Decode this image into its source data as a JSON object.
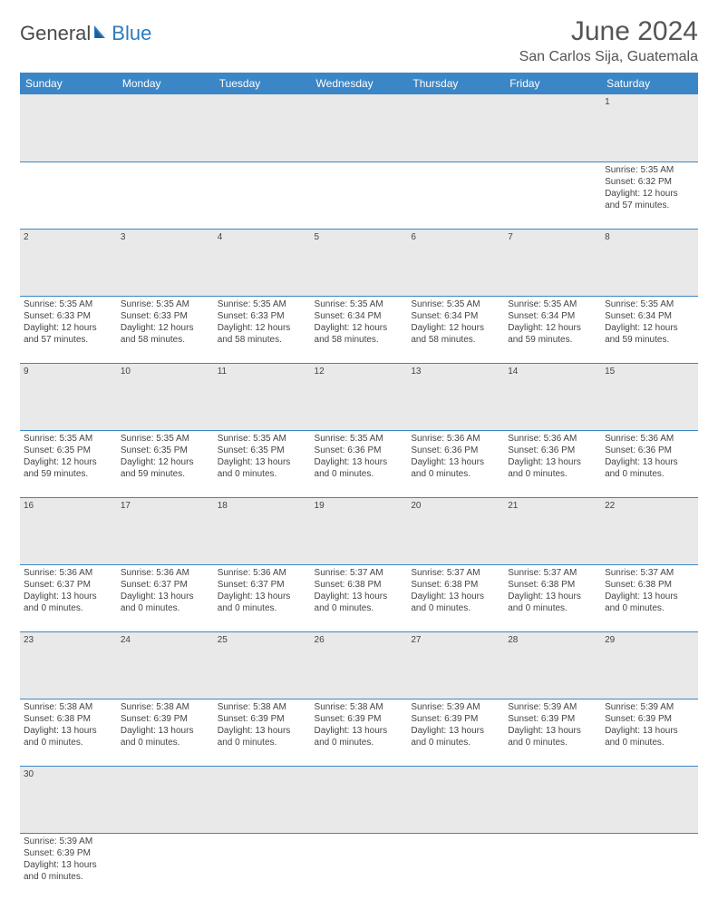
{
  "brand": {
    "general": "General",
    "blue": "Blue"
  },
  "title": "June 2024",
  "location": "San Carlos Sija, Guatemala",
  "colors": {
    "header_bg": "#3b86c6",
    "header_text": "#ffffff",
    "daynum_bg": "#e9e9e9",
    "cell_border": "#3b86c6",
    "text": "#444444",
    "title_text": "#555555"
  },
  "weekdays": [
    "Sunday",
    "Monday",
    "Tuesday",
    "Wednesday",
    "Thursday",
    "Friday",
    "Saturday"
  ],
  "weeks": [
    {
      "nums": [
        "",
        "",
        "",
        "",
        "",
        "",
        "1"
      ],
      "cells": [
        null,
        null,
        null,
        null,
        null,
        null,
        {
          "sunrise": "Sunrise: 5:35 AM",
          "sunset": "Sunset: 6:32 PM",
          "day1": "Daylight: 12 hours",
          "day2": "and 57 minutes."
        }
      ]
    },
    {
      "nums": [
        "2",
        "3",
        "4",
        "5",
        "6",
        "7",
        "8"
      ],
      "cells": [
        {
          "sunrise": "Sunrise: 5:35 AM",
          "sunset": "Sunset: 6:33 PM",
          "day1": "Daylight: 12 hours",
          "day2": "and 57 minutes."
        },
        {
          "sunrise": "Sunrise: 5:35 AM",
          "sunset": "Sunset: 6:33 PM",
          "day1": "Daylight: 12 hours",
          "day2": "and 58 minutes."
        },
        {
          "sunrise": "Sunrise: 5:35 AM",
          "sunset": "Sunset: 6:33 PM",
          "day1": "Daylight: 12 hours",
          "day2": "and 58 minutes."
        },
        {
          "sunrise": "Sunrise: 5:35 AM",
          "sunset": "Sunset: 6:34 PM",
          "day1": "Daylight: 12 hours",
          "day2": "and 58 minutes."
        },
        {
          "sunrise": "Sunrise: 5:35 AM",
          "sunset": "Sunset: 6:34 PM",
          "day1": "Daylight: 12 hours",
          "day2": "and 58 minutes."
        },
        {
          "sunrise": "Sunrise: 5:35 AM",
          "sunset": "Sunset: 6:34 PM",
          "day1": "Daylight: 12 hours",
          "day2": "and 59 minutes."
        },
        {
          "sunrise": "Sunrise: 5:35 AM",
          "sunset": "Sunset: 6:34 PM",
          "day1": "Daylight: 12 hours",
          "day2": "and 59 minutes."
        }
      ]
    },
    {
      "nums": [
        "9",
        "10",
        "11",
        "12",
        "13",
        "14",
        "15"
      ],
      "cells": [
        {
          "sunrise": "Sunrise: 5:35 AM",
          "sunset": "Sunset: 6:35 PM",
          "day1": "Daylight: 12 hours",
          "day2": "and 59 minutes."
        },
        {
          "sunrise": "Sunrise: 5:35 AM",
          "sunset": "Sunset: 6:35 PM",
          "day1": "Daylight: 12 hours",
          "day2": "and 59 minutes."
        },
        {
          "sunrise": "Sunrise: 5:35 AM",
          "sunset": "Sunset: 6:35 PM",
          "day1": "Daylight: 13 hours",
          "day2": "and 0 minutes."
        },
        {
          "sunrise": "Sunrise: 5:35 AM",
          "sunset": "Sunset: 6:36 PM",
          "day1": "Daylight: 13 hours",
          "day2": "and 0 minutes."
        },
        {
          "sunrise": "Sunrise: 5:36 AM",
          "sunset": "Sunset: 6:36 PM",
          "day1": "Daylight: 13 hours",
          "day2": "and 0 minutes."
        },
        {
          "sunrise": "Sunrise: 5:36 AM",
          "sunset": "Sunset: 6:36 PM",
          "day1": "Daylight: 13 hours",
          "day2": "and 0 minutes."
        },
        {
          "sunrise": "Sunrise: 5:36 AM",
          "sunset": "Sunset: 6:36 PM",
          "day1": "Daylight: 13 hours",
          "day2": "and 0 minutes."
        }
      ]
    },
    {
      "nums": [
        "16",
        "17",
        "18",
        "19",
        "20",
        "21",
        "22"
      ],
      "cells": [
        {
          "sunrise": "Sunrise: 5:36 AM",
          "sunset": "Sunset: 6:37 PM",
          "day1": "Daylight: 13 hours",
          "day2": "and 0 minutes."
        },
        {
          "sunrise": "Sunrise: 5:36 AM",
          "sunset": "Sunset: 6:37 PM",
          "day1": "Daylight: 13 hours",
          "day2": "and 0 minutes."
        },
        {
          "sunrise": "Sunrise: 5:36 AM",
          "sunset": "Sunset: 6:37 PM",
          "day1": "Daylight: 13 hours",
          "day2": "and 0 minutes."
        },
        {
          "sunrise": "Sunrise: 5:37 AM",
          "sunset": "Sunset: 6:38 PM",
          "day1": "Daylight: 13 hours",
          "day2": "and 0 minutes."
        },
        {
          "sunrise": "Sunrise: 5:37 AM",
          "sunset": "Sunset: 6:38 PM",
          "day1": "Daylight: 13 hours",
          "day2": "and 0 minutes."
        },
        {
          "sunrise": "Sunrise: 5:37 AM",
          "sunset": "Sunset: 6:38 PM",
          "day1": "Daylight: 13 hours",
          "day2": "and 0 minutes."
        },
        {
          "sunrise": "Sunrise: 5:37 AM",
          "sunset": "Sunset: 6:38 PM",
          "day1": "Daylight: 13 hours",
          "day2": "and 0 minutes."
        }
      ]
    },
    {
      "nums": [
        "23",
        "24",
        "25",
        "26",
        "27",
        "28",
        "29"
      ],
      "cells": [
        {
          "sunrise": "Sunrise: 5:38 AM",
          "sunset": "Sunset: 6:38 PM",
          "day1": "Daylight: 13 hours",
          "day2": "and 0 minutes."
        },
        {
          "sunrise": "Sunrise: 5:38 AM",
          "sunset": "Sunset: 6:39 PM",
          "day1": "Daylight: 13 hours",
          "day2": "and 0 minutes."
        },
        {
          "sunrise": "Sunrise: 5:38 AM",
          "sunset": "Sunset: 6:39 PM",
          "day1": "Daylight: 13 hours",
          "day2": "and 0 minutes."
        },
        {
          "sunrise": "Sunrise: 5:38 AM",
          "sunset": "Sunset: 6:39 PM",
          "day1": "Daylight: 13 hours",
          "day2": "and 0 minutes."
        },
        {
          "sunrise": "Sunrise: 5:39 AM",
          "sunset": "Sunset: 6:39 PM",
          "day1": "Daylight: 13 hours",
          "day2": "and 0 minutes."
        },
        {
          "sunrise": "Sunrise: 5:39 AM",
          "sunset": "Sunset: 6:39 PM",
          "day1": "Daylight: 13 hours",
          "day2": "and 0 minutes."
        },
        {
          "sunrise": "Sunrise: 5:39 AM",
          "sunset": "Sunset: 6:39 PM",
          "day1": "Daylight: 13 hours",
          "day2": "and 0 minutes."
        }
      ]
    },
    {
      "nums": [
        "30",
        "",
        "",
        "",
        "",
        "",
        ""
      ],
      "cells": [
        {
          "sunrise": "Sunrise: 5:39 AM",
          "sunset": "Sunset: 6:39 PM",
          "day1": "Daylight: 13 hours",
          "day2": "and 0 minutes."
        },
        null,
        null,
        null,
        null,
        null,
        null
      ]
    }
  ]
}
